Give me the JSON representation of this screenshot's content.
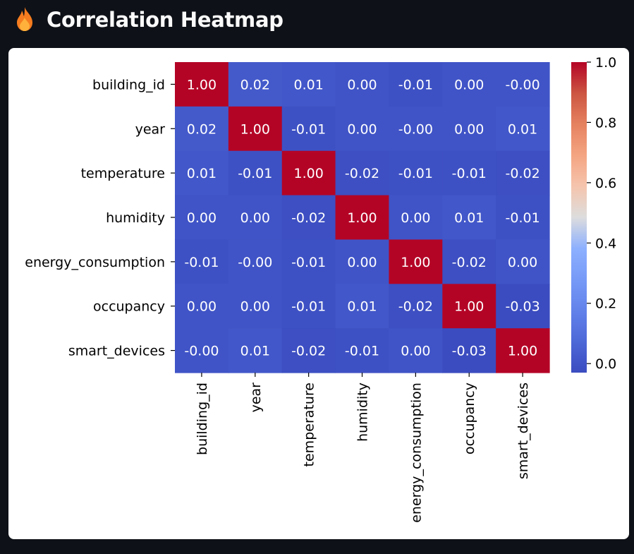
{
  "header": {
    "title": "Correlation Heatmap",
    "icon": "flame-icon"
  },
  "chart_data": {
    "type": "heatmap",
    "title": "",
    "variables": [
      "building_id",
      "year",
      "temperature",
      "humidity",
      "energy_consumption",
      "occupancy",
      "smart_devices"
    ],
    "values": [
      [
        1.0,
        0.02,
        0.01,
        0.0,
        -0.01,
        0.0,
        -0.0
      ],
      [
        0.02,
        1.0,
        -0.01,
        0.0,
        -0.0,
        0.0,
        0.01
      ],
      [
        0.01,
        -0.01,
        1.0,
        -0.02,
        -0.01,
        -0.01,
        -0.02
      ],
      [
        0.0,
        0.0,
        -0.02,
        1.0,
        0.0,
        0.01,
        -0.01
      ],
      [
        -0.01,
        -0.0,
        -0.01,
        0.0,
        1.0,
        -0.02,
        0.0
      ],
      [
        0.0,
        0.0,
        -0.01,
        0.01,
        -0.02,
        1.0,
        -0.03
      ],
      [
        -0.0,
        0.01,
        -0.02,
        -0.01,
        0.0,
        -0.03,
        1.0
      ]
    ],
    "labels": [
      [
        "1.00",
        "0.02",
        "0.01",
        "0.00",
        "-0.01",
        "0.00",
        "-0.00"
      ],
      [
        "0.02",
        "1.00",
        "-0.01",
        "0.00",
        "-0.00",
        "0.00",
        "0.01"
      ],
      [
        "0.01",
        "-0.01",
        "1.00",
        "-0.02",
        "-0.01",
        "-0.01",
        "-0.02"
      ],
      [
        "0.00",
        "0.00",
        "-0.02",
        "1.00",
        "0.00",
        "0.01",
        "-0.01"
      ],
      [
        "-0.01",
        "-0.00",
        "-0.01",
        "0.00",
        "1.00",
        "-0.02",
        "0.00"
      ],
      [
        "0.00",
        "0.00",
        "-0.01",
        "0.01",
        "-0.02",
        "1.00",
        "-0.03"
      ],
      [
        "-0.00",
        "0.01",
        "-0.02",
        "-0.01",
        "0.00",
        "-0.03",
        "1.00"
      ]
    ],
    "colorbar": {
      "colormap": "coolwarm",
      "vmin": -0.03,
      "vmax": 1.0,
      "ticks": [
        0.0,
        0.2,
        0.4,
        0.6,
        0.8,
        1.0
      ],
      "tick_labels": [
        "0.0",
        "0.2",
        "0.4",
        "0.6",
        "0.8",
        "1.0"
      ]
    },
    "colors": {
      "label_text": "#ffffff",
      "axis_text": "#000000"
    }
  }
}
